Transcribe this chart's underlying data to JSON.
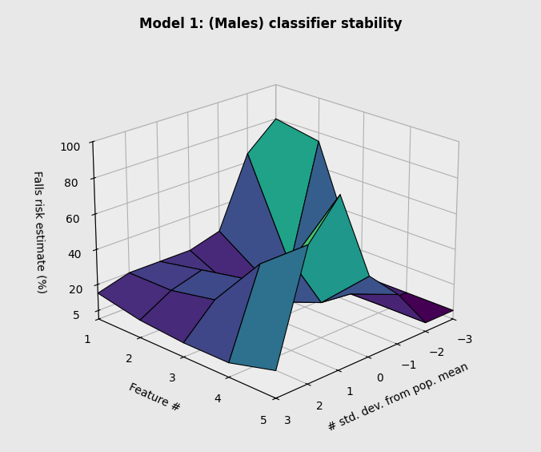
{
  "title": "Model 1: (Males) classifier stability",
  "xlabel": "# std. dev. from pop. mean",
  "ylabel": "Feature #",
  "zlabel": "Falls risk estimate (%)",
  "x_ticks": [
    -3,
    -2,
    -1,
    0,
    1,
    2,
    3
  ],
  "y_ticks": [
    1,
    2,
    3,
    4,
    5
  ],
  "z_ticks": [
    5,
    20,
    40,
    60,
    80,
    100
  ],
  "xlim": [
    -3,
    3
  ],
  "ylim": [
    1,
    5
  ],
  "zlim": [
    0,
    100
  ],
  "Z": [
    [
      80,
      65,
      25,
      20,
      20,
      20,
      15
    ],
    [
      75,
      8,
      8,
      8,
      25,
      20,
      10
    ],
    [
      5,
      38,
      30,
      10,
      30,
      25,
      8
    ],
    [
      5,
      5,
      18,
      20,
      50,
      55,
      8
    ],
    [
      5,
      5,
      28,
      45,
      95,
      75,
      15
    ]
  ],
  "colormap": "viridis",
  "elev": 22,
  "azim": -135,
  "figsize": [
    6.76,
    5.64
  ],
  "dpi": 100,
  "background_color": "#e8e8e8",
  "pane_color": [
    0.94,
    0.94,
    0.94,
    1.0
  ],
  "grid_color": "white"
}
